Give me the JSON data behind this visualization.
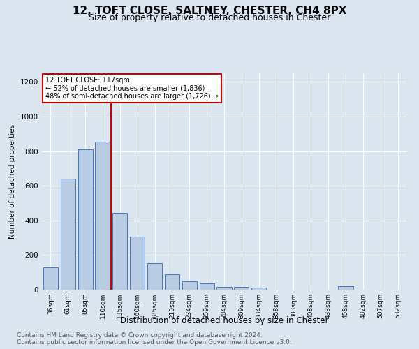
{
  "title1": "12, TOFT CLOSE, SALTNEY, CHESTER, CH4 8PX",
  "title2": "Size of property relative to detached houses in Chester",
  "xlabel": "Distribution of detached houses by size in Chester",
  "ylabel": "Number of detached properties",
  "footnote": "Contains HM Land Registry data © Crown copyright and database right 2024.\nContains public sector information licensed under the Open Government Licence v3.0.",
  "categories": [
    "36sqm",
    "61sqm",
    "85sqm",
    "110sqm",
    "135sqm",
    "160sqm",
    "185sqm",
    "210sqm",
    "234sqm",
    "259sqm",
    "284sqm",
    "309sqm",
    "334sqm",
    "358sqm",
    "383sqm",
    "408sqm",
    "433sqm",
    "458sqm",
    "482sqm",
    "507sqm",
    "532sqm"
  ],
  "values": [
    130,
    640,
    810,
    855,
    445,
    305,
    155,
    90,
    50,
    38,
    15,
    18,
    12,
    0,
    0,
    0,
    0,
    20,
    0,
    0,
    0
  ],
  "bar_color": "#b8cce4",
  "bar_edge_color": "#4472c4",
  "bg_color": "#dce6f1",
  "grid_color": "#ffffff",
  "annotation_box_line": "12 TOFT CLOSE: 117sqm",
  "annotation_line1": "← 52% of detached houses are smaller (1,836)",
  "annotation_line2": "48% of semi-detached houses are larger (1,726) →",
  "vline_x_index": 3,
  "vline_color": "#cc0000",
  "ylim": [
    0,
    1250
  ],
  "annotation_box_color": "#ffffff",
  "annotation_box_edge": "#cc0000",
  "title1_fontsize": 11,
  "title2_fontsize": 9,
  "footnote_fontsize": 6.5
}
